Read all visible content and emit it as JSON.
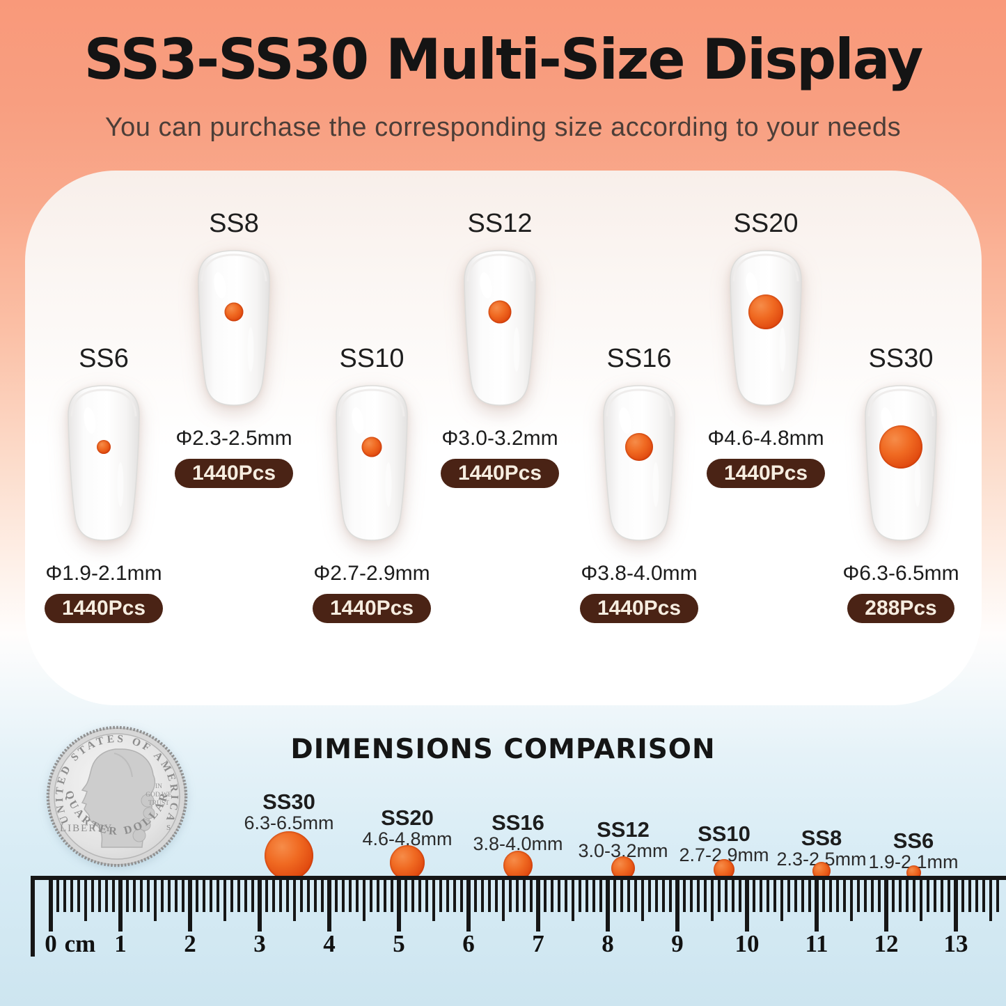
{
  "header": {
    "title": "SS3-SS30 Multi-Size Display",
    "subtitle": "You can purchase the corresponding size according to your needs"
  },
  "panel": {
    "items": [
      {
        "label": "SS6",
        "diameter": "Φ1.9-2.1mm",
        "pcs": "1440Pcs"
      },
      {
        "label": "SS8",
        "diameter": "Φ2.3-2.5mm",
        "pcs": "1440Pcs"
      },
      {
        "label": "SS10",
        "diameter": "Φ2.7-2.9mm",
        "pcs": "1440Pcs"
      },
      {
        "label": "SS12",
        "diameter": "Φ3.0-3.2mm",
        "pcs": "1440Pcs"
      },
      {
        "label": "SS16",
        "diameter": "Φ3.8-4.0mm",
        "pcs": "1440Pcs"
      },
      {
        "label": "SS20",
        "diameter": "Φ4.6-4.8mm",
        "pcs": "1440Pcs"
      },
      {
        "label": "SS30",
        "diameter": "Φ6.3-6.5mm",
        "pcs": "288Pcs"
      }
    ]
  },
  "comparison": {
    "title": "DIMENSIONS COMPARISON",
    "coin": {
      "top_text": "UNITED STATES OF AMERICA",
      "left_text": "LIBERTY",
      "motto": [
        "IN",
        "GOD WE",
        "TRUST"
      ],
      "mint_mark": "S",
      "bottom_text": "QUARTER DOLLAR"
    },
    "dots": [
      {
        "name": "SS30",
        "range": "6.3-6.5mm"
      },
      {
        "name": "SS20",
        "range": "4.6-4.8mm"
      },
      {
        "name": "SS16",
        "range": "3.8-4.0mm"
      },
      {
        "name": "SS12",
        "range": "3.0-3.2mm"
      },
      {
        "name": "SS10",
        "range": "2.7-2.9mm"
      },
      {
        "name": "SS8",
        "range": "2.3-2.5mm"
      },
      {
        "name": "SS6",
        "range": "1.9-2.1mm"
      }
    ]
  },
  "ruler": {
    "unit": "cm",
    "numbers": [
      "0",
      "1",
      "2",
      "3",
      "4",
      "5",
      "6",
      "7",
      "8",
      "9",
      "10",
      "11",
      "12",
      "13"
    ]
  },
  "colors": {
    "accent_orange": "#EA5A1C",
    "badge_brown": "#4A2315",
    "bg_top": "#F89C7E",
    "bg_bottom": "#CDE5F0"
  }
}
